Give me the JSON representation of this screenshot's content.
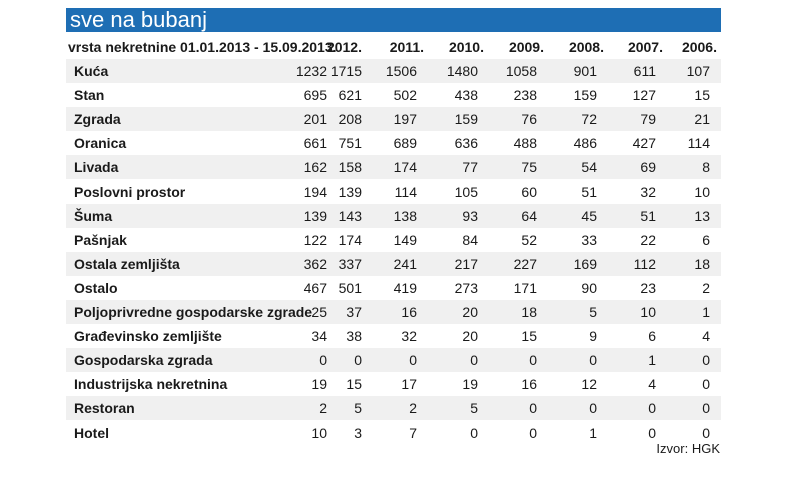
{
  "title": "sve na bubanj",
  "source": "Izvor: HGK",
  "chart_data": {
    "type": "table",
    "columns": [
      "vrsta nekretnine",
      "01.01.2013 - 15.09.2013.",
      "2012.",
      "2011.",
      "2010.",
      "2009.",
      "2008.",
      "2007.",
      "2006."
    ],
    "header_first": "vrsta nekretnine 01.01.2013 - 15.09.2013.",
    "years": [
      "2012.",
      "2011.",
      "2010.",
      "2009.",
      "2008.",
      "2007.",
      "2006."
    ],
    "rows": [
      {
        "name": "Kuća",
        "values": [
          1232,
          1715,
          1506,
          1480,
          1058,
          901,
          611,
          107
        ]
      },
      {
        "name": "Stan",
        "values": [
          695,
          621,
          502,
          438,
          238,
          159,
          127,
          15
        ]
      },
      {
        "name": "Zgrada",
        "values": [
          201,
          208,
          197,
          159,
          76,
          72,
          79,
          21
        ]
      },
      {
        "name": "Oranica",
        "values": [
          661,
          751,
          689,
          636,
          488,
          486,
          427,
          114
        ]
      },
      {
        "name": "Livada",
        "values": [
          162,
          158,
          174,
          77,
          75,
          54,
          69,
          8
        ]
      },
      {
        "name": "Poslovni prostor",
        "values": [
          194,
          139,
          114,
          105,
          60,
          51,
          32,
          10
        ]
      },
      {
        "name": "Šuma",
        "values": [
          139,
          143,
          138,
          93,
          64,
          45,
          51,
          13
        ]
      },
      {
        "name": "Pašnjak",
        "values": [
          122,
          174,
          149,
          84,
          52,
          33,
          22,
          6
        ]
      },
      {
        "name": "Ostala zemljišta",
        "values": [
          362,
          337,
          241,
          217,
          227,
          169,
          112,
          18
        ]
      },
      {
        "name": "Ostalo",
        "values": [
          467,
          501,
          419,
          273,
          171,
          90,
          23,
          2
        ]
      },
      {
        "name": "Poljoprivredne gospodarske zgrade",
        "values": [
          25,
          37,
          16,
          20,
          18,
          5,
          10,
          1
        ]
      },
      {
        "name": "Građevinsko zemljište",
        "values": [
          34,
          38,
          32,
          20,
          15,
          9,
          6,
          4
        ]
      },
      {
        "name": "Gospodarska zgrada",
        "values": [
          0,
          0,
          0,
          0,
          0,
          0,
          1,
          0
        ]
      },
      {
        "name": "Industrijska nekretnina",
        "values": [
          19,
          15,
          17,
          19,
          16,
          12,
          4,
          0
        ]
      },
      {
        "name": "Restoran",
        "values": [
          2,
          5,
          2,
          5,
          0,
          0,
          0,
          0
        ]
      },
      {
        "name": "Hotel",
        "values": [
          10,
          3,
          7,
          0,
          0,
          1,
          0,
          0
        ]
      }
    ]
  },
  "colors": {
    "title_bg": "#1e6eb4",
    "stripe": "#f0f0f0"
  }
}
